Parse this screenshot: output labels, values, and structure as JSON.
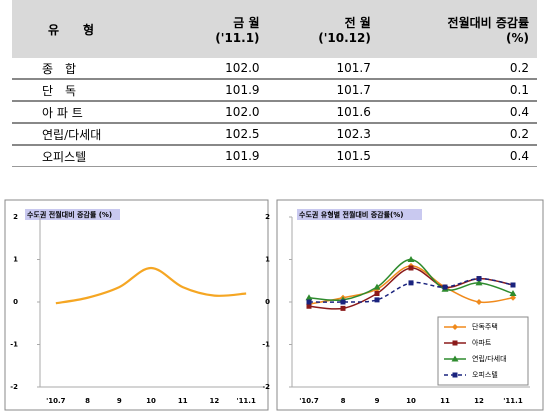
{
  "table": {
    "header": [
      "유　　형",
      "금 월\n('11.1)",
      "전 월\n('10.12)",
      "전월대비 증감률\n(%)"
    ],
    "rows": [
      [
        "종　합",
        "102.0",
        "101.7",
        "0.2"
      ],
      [
        "단　독",
        "101.9",
        "101.7",
        "0.1"
      ],
      [
        "아 파 트",
        "102.0",
        "101.6",
        "0.4"
      ],
      [
        "연립/다세대",
        "102.5",
        "102.3",
        "0.2"
      ],
      [
        "오피스텔",
        "101.9",
        "101.5",
        "0.4"
      ]
    ]
  },
  "chart_data": [
    {
      "type": "line",
      "title": "수도권 전월대비 증감률 (%)",
      "categories": [
        "'10.7",
        "8",
        "9",
        "10",
        "11",
        "12",
        "'11.1"
      ],
      "values": [
        -0.03,
        0.1,
        0.35,
        0.8,
        0.35,
        0.15,
        0.2
      ],
      "color": "#f5a623",
      "smooth": true,
      "ylim": [
        -2,
        2
      ],
      "yticks": [
        -2,
        -1,
        0,
        1,
        2
      ]
    },
    {
      "type": "line",
      "title": "수도권 유형별 전월대비 증감률(%)",
      "categories": [
        "'10.7",
        "8",
        "9",
        "10",
        "11",
        "12",
        "'11.1"
      ],
      "smooth": true,
      "ylim": [
        -2,
        2
      ],
      "yticks": [
        -2,
        -1,
        0,
        1,
        2
      ],
      "legend": "lower right",
      "series": [
        {
          "name": "단독주택",
          "color": "#f08a1c",
          "marker": "diamond",
          "values": [
            -0.05,
            0.1,
            0.3,
            0.85,
            0.35,
            0.0,
            0.1
          ]
        },
        {
          "name": "아파트",
          "color": "#8b1a1a",
          "marker": "square",
          "values": [
            -0.1,
            -0.15,
            0.2,
            0.8,
            0.35,
            0.55,
            0.4
          ]
        },
        {
          "name": "연립/다세대",
          "color": "#2e8b2e",
          "marker": "triangle",
          "values": [
            0.1,
            0.05,
            0.35,
            1.0,
            0.3,
            0.45,
            0.2
          ]
        },
        {
          "name": "오피스텔",
          "color": "#1a237e",
          "marker": "square",
          "dash": true,
          "values": [
            0.0,
            0.0,
            0.05,
            0.45,
            0.35,
            0.55,
            0.4
          ]
        }
      ]
    }
  ]
}
